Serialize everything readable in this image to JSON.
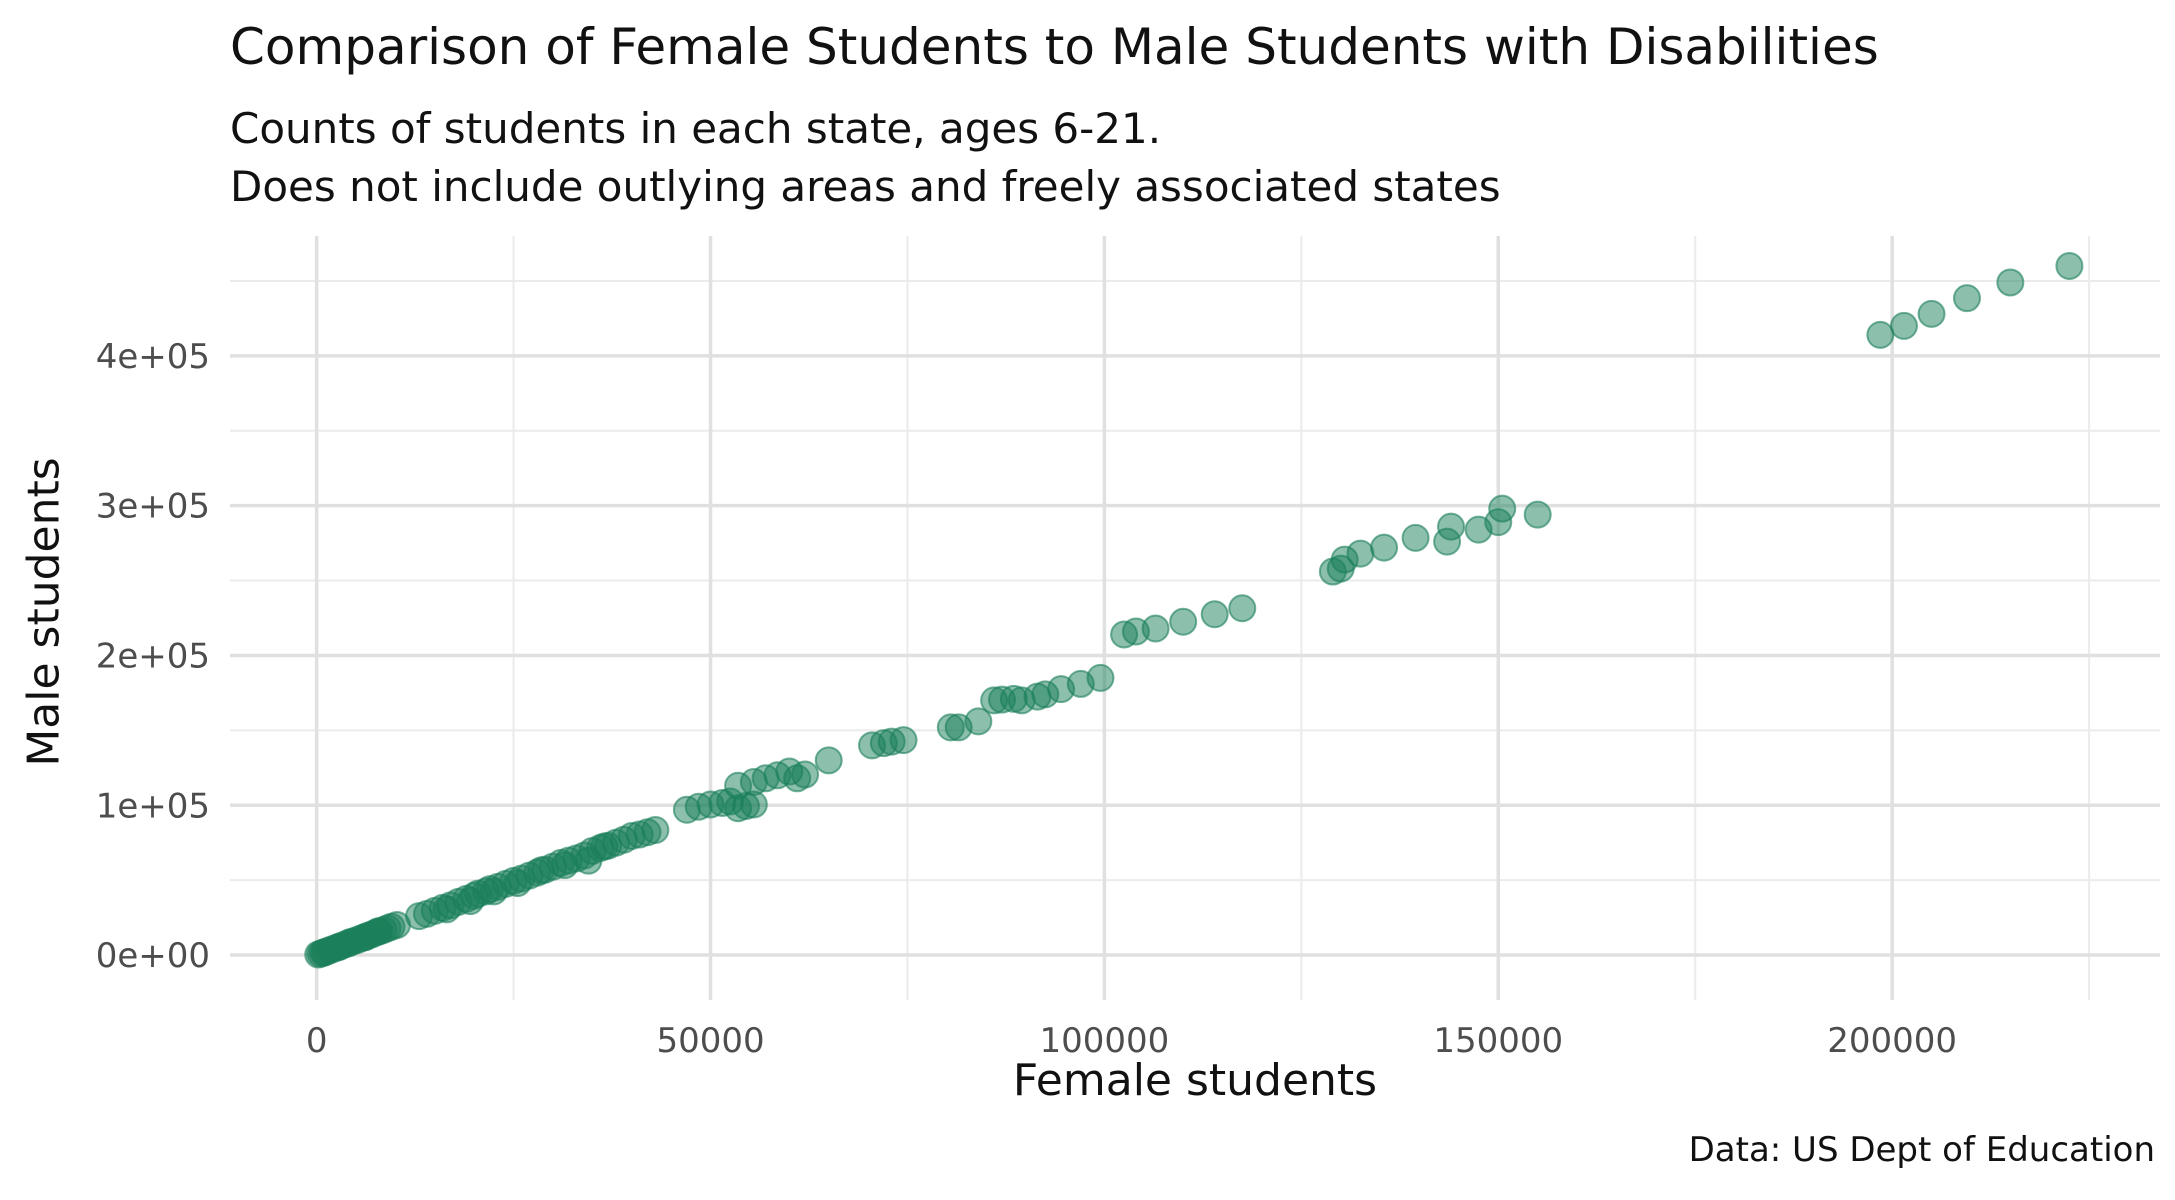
{
  "chart_data": {
    "type": "scatter",
    "title": "Comparison of Female Students to Male Students with Disabilities",
    "subtitle_lines": [
      "Counts of students in each state, ages 6-21.",
      "Does not include outlying areas and freely associated states"
    ],
    "xlabel": "Female students",
    "ylabel": "Male students",
    "caption": "Data: US Dept of Education",
    "xlim": [
      -11000,
      234000
    ],
    "ylim": [
      -30000,
      480000
    ],
    "x_ticks": [
      0,
      50000,
      100000,
      150000,
      200000
    ],
    "x_tick_labels": [
      "0",
      "50000",
      "100000",
      "150000",
      "200000"
    ],
    "y_ticks": [
      0,
      100000,
      200000,
      300000,
      400000
    ],
    "y_tick_labels": [
      "0e+00",
      "1e+05",
      "2e+05",
      "3e+05",
      "4e+05"
    ],
    "grid": true,
    "point_color": "#1a7f5a",
    "point_opacity": 0.5,
    "points": [
      [
        200,
        400
      ],
      [
        500,
        900
      ],
      [
        800,
        1500
      ],
      [
        1200,
        2300
      ],
      [
        1600,
        3100
      ],
      [
        2000,
        3900
      ],
      [
        2500,
        4900
      ],
      [
        3000,
        5900
      ],
      [
        3500,
        6900
      ],
      [
        4000,
        7800
      ],
      [
        4500,
        8900
      ],
      [
        5000,
        9800
      ],
      [
        5500,
        10800
      ],
      [
        6000,
        11800
      ],
      [
        6500,
        12900
      ],
      [
        7000,
        13800
      ],
      [
        7500,
        14900
      ],
      [
        8000,
        15900
      ],
      [
        8500,
        16800
      ],
      [
        9000,
        17900
      ],
      [
        9500,
        18900
      ],
      [
        10200,
        20100
      ],
      [
        1000,
        1800
      ],
      [
        2800,
        5300
      ],
      [
        4200,
        8500
      ],
      [
        6200,
        12000
      ],
      [
        7800,
        15800
      ],
      [
        13000,
        26000
      ],
      [
        14000,
        27500
      ],
      [
        15000,
        29500
      ],
      [
        16000,
        31500
      ],
      [
        17000,
        33200
      ],
      [
        18000,
        35500
      ],
      [
        19000,
        37500
      ],
      [
        20000,
        39500
      ],
      [
        20500,
        41000
      ],
      [
        21500,
        42500
      ],
      [
        22000,
        44000
      ],
      [
        23000,
        45500
      ],
      [
        24000,
        47500
      ],
      [
        25000,
        49500
      ],
      [
        26000,
        51000
      ],
      [
        27000,
        53000
      ],
      [
        28000,
        55000
      ],
      [
        29000,
        57000
      ],
      [
        30000,
        59000
      ],
      [
        31000,
        61500
      ],
      [
        32000,
        63000
      ],
      [
        33000,
        64500
      ],
      [
        34000,
        66500
      ],
      [
        35000,
        69500
      ],
      [
        36000,
        71500
      ],
      [
        37000,
        73000
      ],
      [
        38000,
        75000
      ],
      [
        39000,
        77000
      ],
      [
        40000,
        79500
      ],
      [
        41000,
        80500
      ],
      [
        42000,
        82000
      ],
      [
        43000,
        83500
      ],
      [
        16500,
        30500
      ],
      [
        19500,
        36000
      ],
      [
        22500,
        42500
      ],
      [
        25500,
        48000
      ],
      [
        28500,
        56500
      ],
      [
        31500,
        60000
      ],
      [
        34500,
        63000
      ],
      [
        36500,
        72500
      ],
      [
        47000,
        97000
      ],
      [
        48500,
        99000
      ],
      [
        50000,
        100500
      ],
      [
        51500,
        101500
      ],
      [
        52500,
        102500
      ],
      [
        53500,
        98000
      ],
      [
        54500,
        99500
      ],
      [
        55500,
        100500
      ],
      [
        53500,
        113000
      ],
      [
        55500,
        115500
      ],
      [
        57000,
        118000
      ],
      [
        58500,
        120000
      ],
      [
        60000,
        122500
      ],
      [
        61000,
        118000
      ],
      [
        62000,
        120500
      ],
      [
        65000,
        130000
      ],
      [
        70500,
        140000
      ],
      [
        72000,
        141500
      ],
      [
        73000,
        142500
      ],
      [
        74500,
        143500
      ],
      [
        80500,
        152000
      ],
      [
        81500,
        152000
      ],
      [
        84000,
        156000
      ],
      [
        86000,
        170000
      ],
      [
        87000,
        170500
      ],
      [
        88500,
        171000
      ],
      [
        89500,
        170000
      ],
      [
        91500,
        172500
      ],
      [
        92500,
        174000
      ],
      [
        94500,
        177500
      ],
      [
        97000,
        181000
      ],
      [
        99500,
        185000
      ],
      [
        102500,
        214000
      ],
      [
        104000,
        216000
      ],
      [
        106500,
        218000
      ],
      [
        110000,
        222500
      ],
      [
        114000,
        227500
      ],
      [
        117500,
        231500
      ],
      [
        129000,
        256000
      ],
      [
        130000,
        258000
      ],
      [
        130500,
        264000
      ],
      [
        132500,
        268000
      ],
      [
        135500,
        272000
      ],
      [
        139500,
        278500
      ],
      [
        143500,
        276000
      ],
      [
        144000,
        286000
      ],
      [
        147500,
        284000
      ],
      [
        150000,
        289000
      ],
      [
        150500,
        298000
      ],
      [
        155000,
        294000
      ],
      [
        198500,
        414000
      ],
      [
        201500,
        420000
      ],
      [
        205000,
        428000
      ],
      [
        209500,
        438500
      ],
      [
        215000,
        449000
      ],
      [
        222500,
        460000
      ]
    ]
  }
}
